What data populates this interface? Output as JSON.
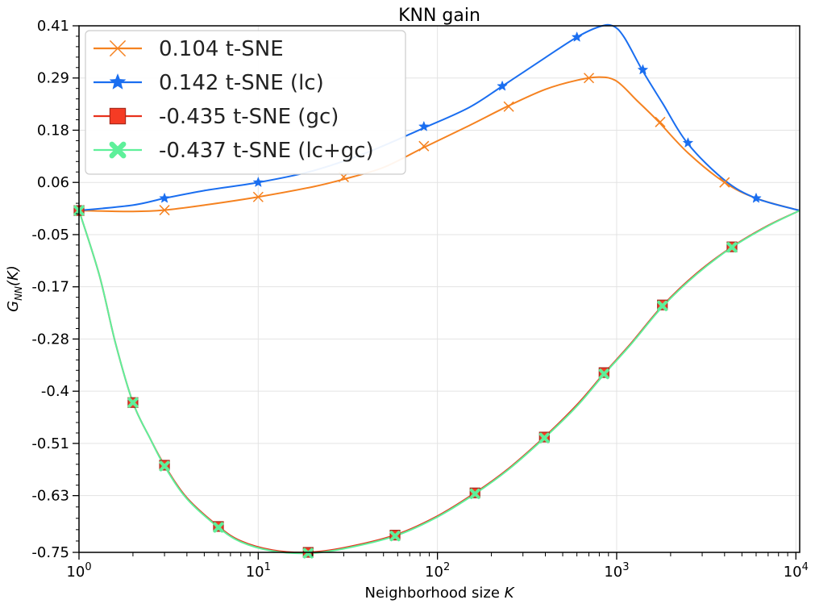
{
  "chart_data": {
    "type": "line",
    "title": "KNN gain",
    "xlabel_main": "Neighborhood size ",
    "xlabel_var": "K",
    "ylabel_main": "G",
    "ylabel_sub": "NN",
    "ylabel_arg": "(K)",
    "x_scale": "log",
    "xlim": [
      1,
      10500
    ],
    "ylim": [
      -0.75,
      0.41
    ],
    "x_ticks": [
      {
        "value": 1,
        "base": "10",
        "exp": "0"
      },
      {
        "value": 10,
        "base": "10",
        "exp": "1"
      },
      {
        "value": 100,
        "base": "10",
        "exp": "2"
      },
      {
        "value": 1000,
        "base": "10",
        "exp": "3"
      },
      {
        "value": 10000,
        "base": "10",
        "exp": "4"
      }
    ],
    "y_ticks": [
      {
        "value": 0.41,
        "label": "0.41"
      },
      {
        "value": 0.295,
        "label": "0.29"
      },
      {
        "value": 0.18,
        "label": "0.18"
      },
      {
        "value": 0.065,
        "label": "0.06"
      },
      {
        "value": -0.05,
        "label": "-0.05"
      },
      {
        "value": -0.165,
        "label": "-0.17"
      },
      {
        "value": -0.28,
        "label": "-0.28"
      },
      {
        "value": -0.395,
        "label": "-0.4"
      },
      {
        "value": -0.51,
        "label": "-0.51"
      },
      {
        "value": -0.625,
        "label": "-0.63"
      },
      {
        "value": -0.75,
        "label": "-0.75"
      }
    ],
    "grid": true,
    "legend_position": "top-left",
    "series": [
      {
        "name": "0.104 t-SNE",
        "color": "#f58220",
        "marker": "x",
        "curve": [
          [
            1,
            0.003
          ],
          [
            2,
            0.001
          ],
          [
            3,
            0.004
          ],
          [
            5,
            0.015
          ],
          [
            10,
            0.033
          ],
          [
            20,
            0.055
          ],
          [
            30,
            0.072
          ],
          [
            50,
            0.098
          ],
          [
            84,
            0.142
          ],
          [
            150,
            0.19
          ],
          [
            250,
            0.234
          ],
          [
            400,
            0.27
          ],
          [
            600,
            0.29
          ],
          [
            800,
            0.297
          ],
          [
            1000,
            0.288
          ],
          [
            1300,
            0.245
          ],
          [
            1700,
            0.2
          ],
          [
            2500,
            0.13
          ],
          [
            4000,
            0.065
          ],
          [
            6000,
            0.03
          ],
          [
            10500,
            0.003
          ]
        ],
        "markers": [
          [
            1,
            0.003
          ],
          [
            3,
            0.004
          ],
          [
            10,
            0.033
          ],
          [
            30,
            0.077
          ],
          [
            84,
            0.145
          ],
          [
            250,
            0.232
          ],
          [
            700,
            0.295
          ],
          [
            1750,
            0.198
          ],
          [
            4000,
            0.065
          ]
        ]
      },
      {
        "name": "0.142 t-SNE (lc)",
        "color": "#1a6ef0",
        "marker": "star",
        "curve": [
          [
            1,
            0.003
          ],
          [
            2,
            0.015
          ],
          [
            3,
            0.03
          ],
          [
            5,
            0.047
          ],
          [
            10,
            0.065
          ],
          [
            20,
            0.09
          ],
          [
            40,
            0.13
          ],
          [
            84,
            0.185
          ],
          [
            150,
            0.23
          ],
          [
            230,
            0.277
          ],
          [
            400,
            0.34
          ],
          [
            600,
            0.385
          ],
          [
            800,
            0.408
          ],
          [
            950,
            0.41
          ],
          [
            1100,
            0.385
          ],
          [
            1400,
            0.31
          ],
          [
            1800,
            0.24
          ],
          [
            2500,
            0.15
          ],
          [
            4000,
            0.07
          ],
          [
            6000,
            0.03
          ],
          [
            10500,
            0.003
          ]
        ],
        "markers": [
          [
            1,
            0.003
          ],
          [
            3,
            0.03
          ],
          [
            10,
            0.065
          ],
          [
            84,
            0.188
          ],
          [
            230,
            0.277
          ],
          [
            600,
            0.385
          ],
          [
            1400,
            0.313
          ],
          [
            2500,
            0.152
          ],
          [
            6000,
            0.03
          ]
        ]
      },
      {
        "name": "-0.435 t-SNE (gc)",
        "color": "#e8311c",
        "marker": "square",
        "curve": [
          [
            1,
            0.003
          ],
          [
            1.3,
            -0.14
          ],
          [
            1.6,
            -0.29
          ],
          [
            2,
            -0.42
          ],
          [
            2.5,
            -0.5
          ],
          [
            3,
            -0.558
          ],
          [
            4,
            -0.63
          ],
          [
            6,
            -0.693
          ],
          [
            8,
            -0.725
          ],
          [
            12,
            -0.745
          ],
          [
            19,
            -0.75
          ],
          [
            30,
            -0.74
          ],
          [
            58,
            -0.712
          ],
          [
            100,
            -0.67
          ],
          [
            162,
            -0.619
          ],
          [
            250,
            -0.565
          ],
          [
            395,
            -0.496
          ],
          [
            600,
            -0.425
          ],
          [
            850,
            -0.356
          ],
          [
            1200,
            -0.29
          ],
          [
            1800,
            -0.207
          ],
          [
            2800,
            -0.135
          ],
          [
            4400,
            -0.077
          ],
          [
            7000,
            -0.03
          ],
          [
            10500,
            0.003
          ]
        ],
        "markers": [
          [
            1,
            0.003
          ],
          [
            2,
            -0.42
          ],
          [
            3,
            -0.558
          ],
          [
            6,
            -0.693
          ],
          [
            19,
            -0.75
          ],
          [
            58,
            -0.712
          ],
          [
            162,
            -0.619
          ],
          [
            395,
            -0.496
          ],
          [
            850,
            -0.354
          ],
          [
            1800,
            -0.205
          ],
          [
            4400,
            -0.077
          ]
        ]
      },
      {
        "name": "-0.437 t-SNE (lc+gc)",
        "color": "#5ef09a",
        "marker": "X",
        "curve": [
          [
            1,
            0.003
          ],
          [
            1.3,
            -0.14
          ],
          [
            1.6,
            -0.29
          ],
          [
            2,
            -0.42
          ],
          [
            2.5,
            -0.5
          ],
          [
            3,
            -0.56
          ],
          [
            4,
            -0.632
          ],
          [
            6,
            -0.695
          ],
          [
            8,
            -0.727
          ],
          [
            12,
            -0.747
          ],
          [
            19,
            -0.752
          ],
          [
            30,
            -0.742
          ],
          [
            58,
            -0.714
          ],
          [
            100,
            -0.672
          ],
          [
            162,
            -0.621
          ],
          [
            250,
            -0.567
          ],
          [
            395,
            -0.498
          ],
          [
            600,
            -0.428
          ],
          [
            850,
            -0.358
          ],
          [
            1200,
            -0.292
          ],
          [
            1800,
            -0.209
          ],
          [
            2800,
            -0.137
          ],
          [
            4400,
            -0.078
          ],
          [
            7000,
            -0.031
          ],
          [
            10500,
            0.003
          ]
        ],
        "markers": [
          [
            1,
            0.003
          ],
          [
            2,
            -0.42
          ],
          [
            3,
            -0.56
          ],
          [
            6,
            -0.695
          ],
          [
            19,
            -0.752
          ],
          [
            58,
            -0.714
          ],
          [
            162,
            -0.621
          ],
          [
            395,
            -0.498
          ],
          [
            850,
            -0.357
          ],
          [
            1800,
            -0.207
          ],
          [
            4400,
            -0.078
          ]
        ]
      }
    ]
  }
}
